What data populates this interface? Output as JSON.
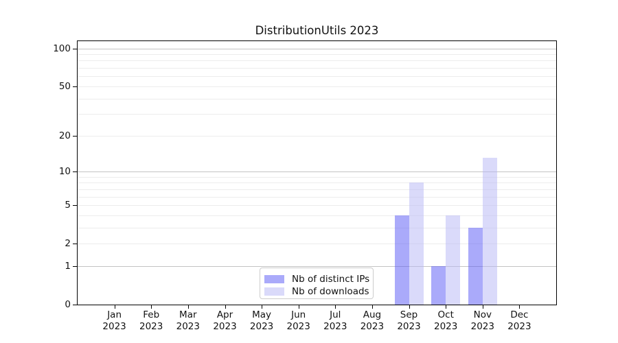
{
  "chart_data": {
    "type": "bar",
    "title": "DistributionUtils 2023",
    "categories": [
      "Jan",
      "Feb",
      "Mar",
      "Apr",
      "May",
      "Jun",
      "Jul",
      "Aug",
      "Sep",
      "Oct",
      "Nov",
      "Dec"
    ],
    "year_label": "2023",
    "series": [
      {
        "name": "Nb of distinct IPs",
        "color": "#5555f5",
        "alpha": 0.5,
        "values": [
          0,
          0,
          0,
          0,
          0,
          0,
          0,
          0,
          4,
          1,
          3,
          0
        ]
      },
      {
        "name": "Nb of downloads",
        "color": "#b5b5f5",
        "alpha": 0.5,
        "values": [
          0,
          0,
          0,
          0,
          0,
          0,
          0,
          0,
          8,
          4,
          13,
          0
        ]
      }
    ],
    "xlabel": "",
    "ylabel": "",
    "yscale": "log1p",
    "ylim": [
      0,
      114
    ],
    "yticks": [
      0,
      1,
      2,
      5,
      10,
      20,
      50,
      100
    ],
    "bar_width_fraction": 0.4,
    "grid": true,
    "gridlines": {
      "major": [
        1,
        10,
        100
      ],
      "minor": [
        2,
        3,
        4,
        5,
        6,
        7,
        8,
        9,
        20,
        30,
        40,
        50,
        60,
        70,
        80,
        90
      ],
      "major_color": "#c3c3c3",
      "minor_color": "#ececec"
    },
    "legend_position": "lower center"
  }
}
